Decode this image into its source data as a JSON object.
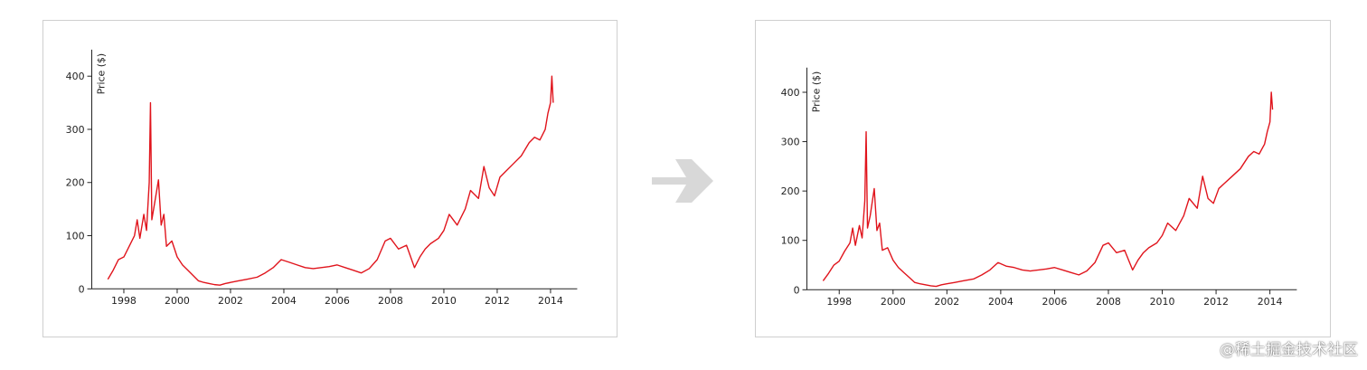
{
  "colors": {
    "line": "#e0141c",
    "axis": "#222222",
    "arrow": "#d8d8d8"
  },
  "arrow_icon": "arrow-right-icon",
  "watermark": "@稀土掘金技术社区",
  "chart_data": [
    {
      "type": "line",
      "title": "",
      "xlabel": "",
      "ylabel": "Price ($)",
      "xlim": [
        1997.0,
        2015.0
      ],
      "ylim": [
        0,
        450
      ],
      "x_ticks": [
        1998,
        2000,
        2002,
        2004,
        2006,
        2008,
        2010,
        2012,
        2014
      ],
      "y_ticks": [
        0,
        100,
        200,
        300,
        400
      ],
      "grid": false,
      "series": [
        {
          "x": [
            1997.4,
            1997.6,
            1997.8,
            1998.0,
            1998.2,
            1998.4,
            1998.5,
            1998.6,
            1998.75,
            1998.85,
            1998.95,
            1999.0,
            1999.05,
            1999.15,
            1999.3,
            1999.4,
            1999.5,
            1999.6,
            1999.8,
            2000.0,
            2000.2,
            2000.4,
            2000.6,
            2000.8,
            2001.0,
            2001.2,
            2001.4,
            2001.6,
            2001.8,
            2002.0,
            2002.3,
            2002.6,
            2003.0,
            2003.3,
            2003.6,
            2003.9,
            2004.2,
            2004.5,
            2004.8,
            2005.1,
            2005.4,
            2005.7,
            2006.0,
            2006.3,
            2006.6,
            2006.9,
            2007.2,
            2007.5,
            2007.8,
            2008.0,
            2008.3,
            2008.6,
            2008.9,
            2009.1,
            2009.3,
            2009.5,
            2009.8,
            2010.0,
            2010.2,
            2010.5,
            2010.8,
            2011.0,
            2011.3,
            2011.5,
            2011.7,
            2011.9,
            2012.1,
            2012.3,
            2012.6,
            2012.9,
            2013.2,
            2013.4,
            2013.6,
            2013.8,
            2013.9,
            2014.0,
            2014.05,
            2014.1
          ],
          "values": [
            18,
            35,
            55,
            60,
            80,
            100,
            130,
            95,
            140,
            110,
            200,
            350,
            130,
            160,
            205,
            120,
            140,
            80,
            90,
            60,
            45,
            35,
            25,
            15,
            12,
            10,
            8,
            7,
            10,
            12,
            15,
            18,
            22,
            30,
            40,
            55,
            50,
            45,
            40,
            38,
            40,
            42,
            45,
            40,
            35,
            30,
            38,
            55,
            90,
            95,
            75,
            82,
            40,
            60,
            75,
            85,
            95,
            110,
            140,
            120,
            150,
            185,
            170,
            230,
            190,
            175,
            210,
            220,
            235,
            250,
            275,
            285,
            280,
            300,
            330,
            350,
            400,
            350
          ]
        }
      ]
    },
    {
      "type": "line",
      "title": "",
      "xlabel": "",
      "ylabel": "Price ($)",
      "xlim": [
        1997.0,
        2015.0
      ],
      "ylim": [
        0,
        450
      ],
      "x_ticks": [
        1998,
        2000,
        2002,
        2004,
        2006,
        2008,
        2010,
        2012,
        2014
      ],
      "y_ticks": [
        0,
        100,
        200,
        300,
        400
      ],
      "grid": false,
      "series": [
        {
          "x": [
            1997.4,
            1997.6,
            1997.8,
            1998.0,
            1998.2,
            1998.4,
            1998.5,
            1998.6,
            1998.75,
            1998.85,
            1998.95,
            1999.0,
            1999.05,
            1999.15,
            1999.3,
            1999.4,
            1999.5,
            1999.6,
            1999.8,
            2000.0,
            2000.2,
            2000.4,
            2000.6,
            2000.8,
            2001.0,
            2001.2,
            2001.4,
            2001.6,
            2001.8,
            2002.0,
            2002.3,
            2002.6,
            2003.0,
            2003.3,
            2003.6,
            2003.9,
            2004.2,
            2004.5,
            2004.8,
            2005.1,
            2005.4,
            2005.7,
            2006.0,
            2006.3,
            2006.6,
            2006.9,
            2007.2,
            2007.5,
            2007.8,
            2008.0,
            2008.3,
            2008.6,
            2008.9,
            2009.1,
            2009.3,
            2009.5,
            2009.8,
            2010.0,
            2010.2,
            2010.5,
            2010.8,
            2011.0,
            2011.3,
            2011.5,
            2011.7,
            2011.9,
            2012.1,
            2012.3,
            2012.6,
            2012.9,
            2013.2,
            2013.4,
            2013.6,
            2013.8,
            2013.9,
            2014.0,
            2014.05,
            2014.1
          ],
          "values": [
            18,
            33,
            50,
            58,
            78,
            95,
            125,
            90,
            130,
            105,
            180,
            320,
            125,
            150,
            205,
            120,
            135,
            80,
            85,
            60,
            45,
            35,
            25,
            15,
            12,
            10,
            8,
            7,
            10,
            12,
            15,
            18,
            22,
            30,
            40,
            55,
            48,
            45,
            40,
            38,
            40,
            42,
            45,
            40,
            35,
            30,
            38,
            55,
            90,
            95,
            75,
            80,
            40,
            60,
            75,
            85,
            95,
            110,
            135,
            120,
            150,
            185,
            165,
            230,
            185,
            175,
            205,
            215,
            230,
            245,
            270,
            280,
            275,
            295,
            320,
            340,
            400,
            365
          ]
        }
      ]
    }
  ]
}
